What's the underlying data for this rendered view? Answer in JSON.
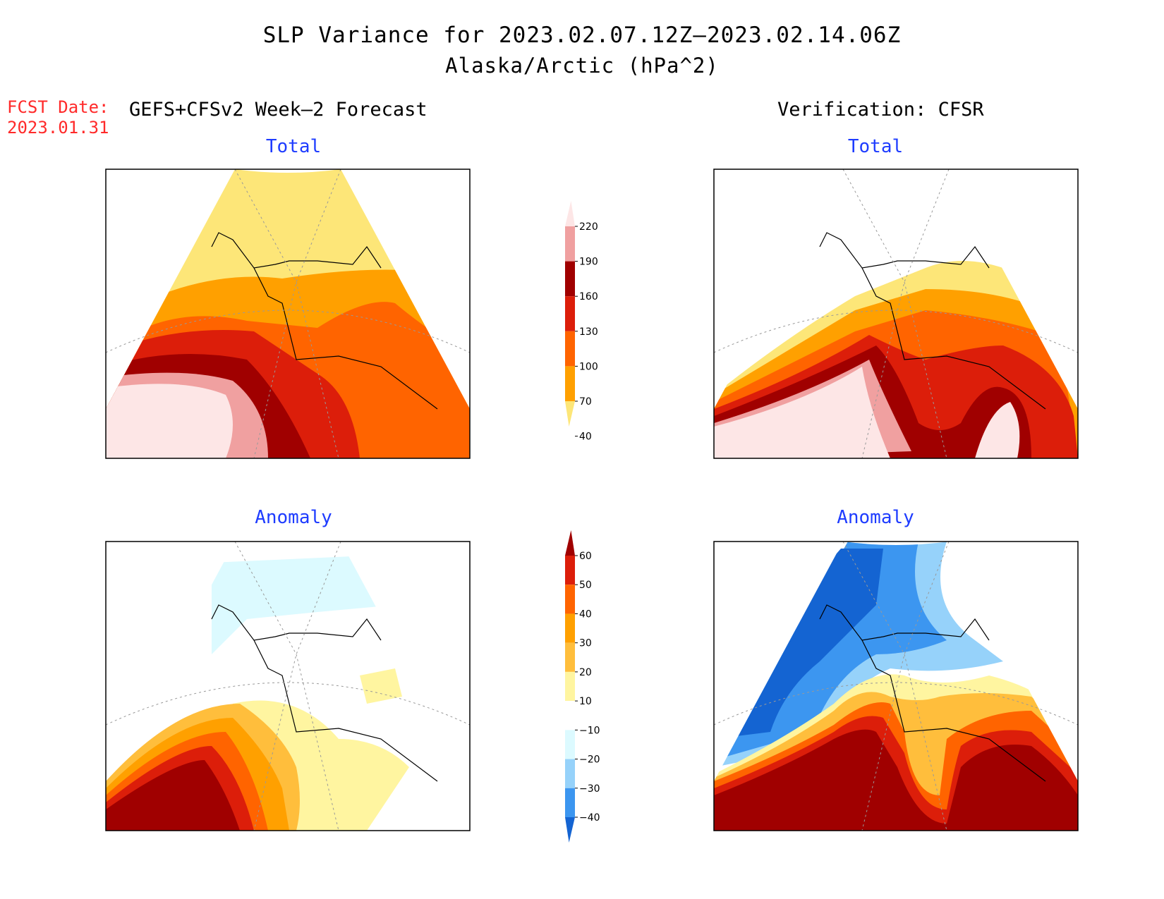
{
  "title": "SLP Variance for 2023.02.07.12Z–2023.02.14.06Z",
  "subtitle": "Alaska/Arctic (hPa^2)",
  "forecast_date": {
    "label": "FCST Date:",
    "value": "2023.01.31"
  },
  "left_column_title": "GEFS+CFSv2 Week–2 Forecast",
  "right_column_title": "Verification: CFSR",
  "panels": {
    "forecast_total": {
      "label": "Total"
    },
    "verification_total": {
      "label": "Total"
    },
    "forecast_anomaly": {
      "label": "Anomaly"
    },
    "verification_anomaly": {
      "label": "Anomaly"
    }
  },
  "total_colorbar": {
    "ticks": [
      "220",
      "190",
      "160",
      "130",
      "100",
      "70",
      "40"
    ],
    "colors": [
      "#fde6e6",
      "#f0a0a0",
      "#a00000",
      "#dc1e0a",
      "#ff6400",
      "#ffa000",
      "#fde678"
    ]
  },
  "anomaly_colorbar": {
    "ticks": [
      "60",
      "50",
      "40",
      "30",
      "20",
      "10",
      "−10",
      "−20",
      "−30",
      "−40"
    ],
    "colors": [
      "#a00000",
      "#dc1e0a",
      "#ff6400",
      "#ffa000",
      "#ffbe3c",
      "#fff5a0",
      "#ffffff",
      "#dcfaff",
      "#96d2fa",
      "#3c96f0",
      "#1464d2"
    ]
  }
}
